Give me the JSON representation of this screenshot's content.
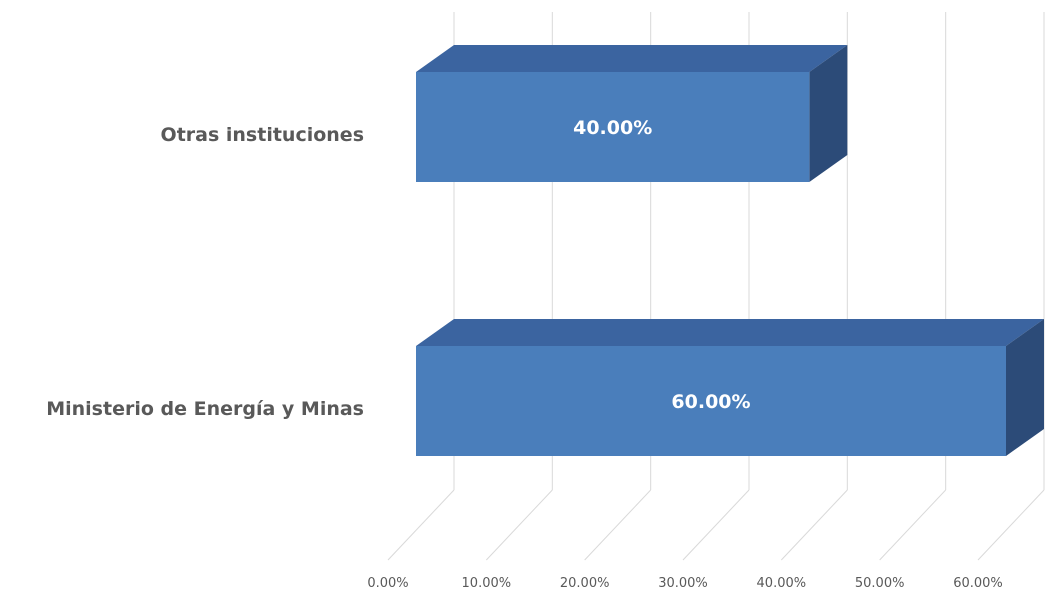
{
  "chart_data": {
    "type": "bar",
    "orientation": "horizontal",
    "three_d": true,
    "categories": [
      "Otras instituciones",
      "Ministerio de Energía y Minas"
    ],
    "values": [
      40.0,
      60.0
    ],
    "data_labels": [
      "40.00%",
      "60.00%"
    ],
    "x_ticks": [
      0,
      10,
      20,
      30,
      40,
      50,
      60
    ],
    "x_tick_labels": [
      "0.00%",
      "10.00%",
      "20.00%",
      "30.00%",
      "40.00%",
      "50.00%",
      "60.00%"
    ],
    "xlim": [
      0,
      60
    ],
    "grid": true,
    "legend": "none",
    "colors": {
      "bar_front": "#4a7ebb",
      "bar_top": "#3b64a0",
      "bar_side": "#2c4b78",
      "category_label": "#595959",
      "tick_label": "#595959",
      "gridline": "#d9d9d9",
      "data_label": "#ffffff"
    }
  }
}
